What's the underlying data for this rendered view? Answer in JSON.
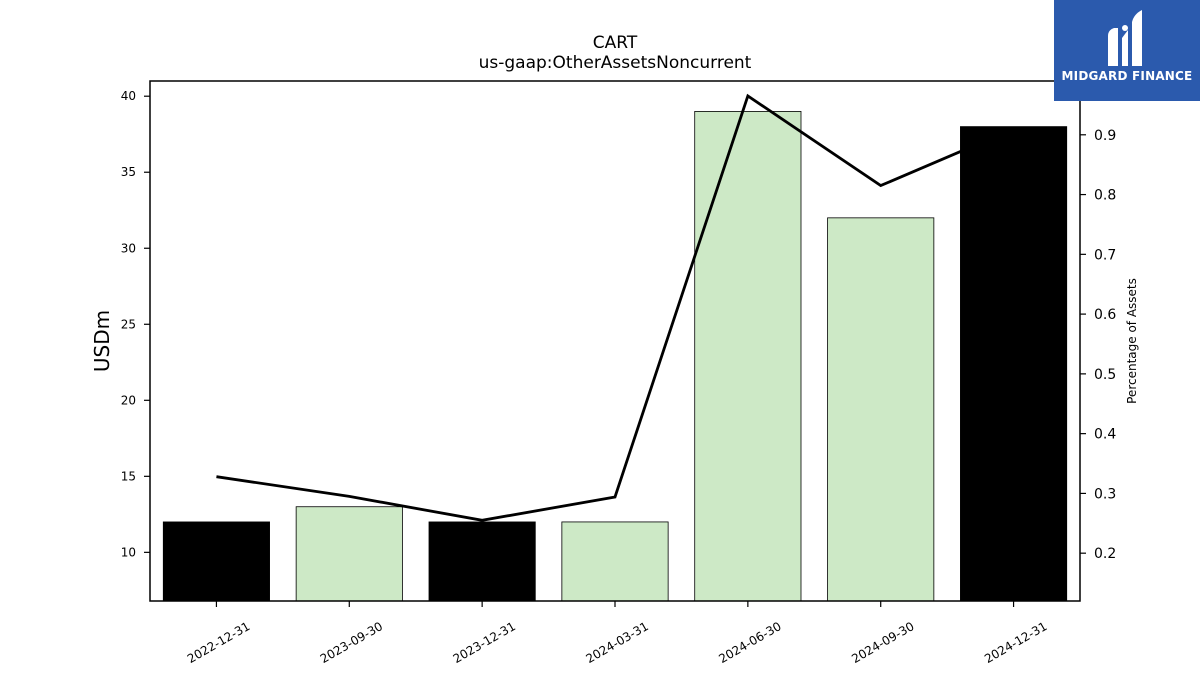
{
  "chart_data": {
    "type": "bar",
    "title": "CART",
    "subtitle": "us-gaap:OtherAssetsNoncurrent",
    "ylabel": "USDm",
    "y2label": "Percentage of Assets",
    "categories": [
      "2022-12-31",
      "2023-09-30",
      "2023-12-31",
      "2024-03-31",
      "2024-06-30",
      "2024-09-30",
      "2024-12-31"
    ],
    "values": [
      12,
      13,
      12,
      12,
      39,
      32,
      38
    ],
    "bar_colors": [
      "#000000",
      "#cde9c6",
      "#000000",
      "#cde9c6",
      "#cde9c6",
      "#cde9c6",
      "#000000"
    ],
    "line_series": {
      "axis": "right",
      "values": [
        0.328,
        0.295,
        0.255,
        0.294,
        0.965,
        0.815,
        0.91
      ]
    },
    "ylim": [
      6.8,
      41
    ],
    "y2lim": [
      0.12,
      0.99
    ],
    "yticks": [
      10,
      15,
      20,
      25,
      30,
      35,
      40
    ],
    "y2ticks": [
      0.2,
      0.3,
      0.4,
      0.5,
      0.6,
      0.7,
      0.8,
      0.9
    ],
    "grid": false
  },
  "logo": {
    "text": "MIDGARD FINANCE",
    "background": "#2b5aad"
  }
}
